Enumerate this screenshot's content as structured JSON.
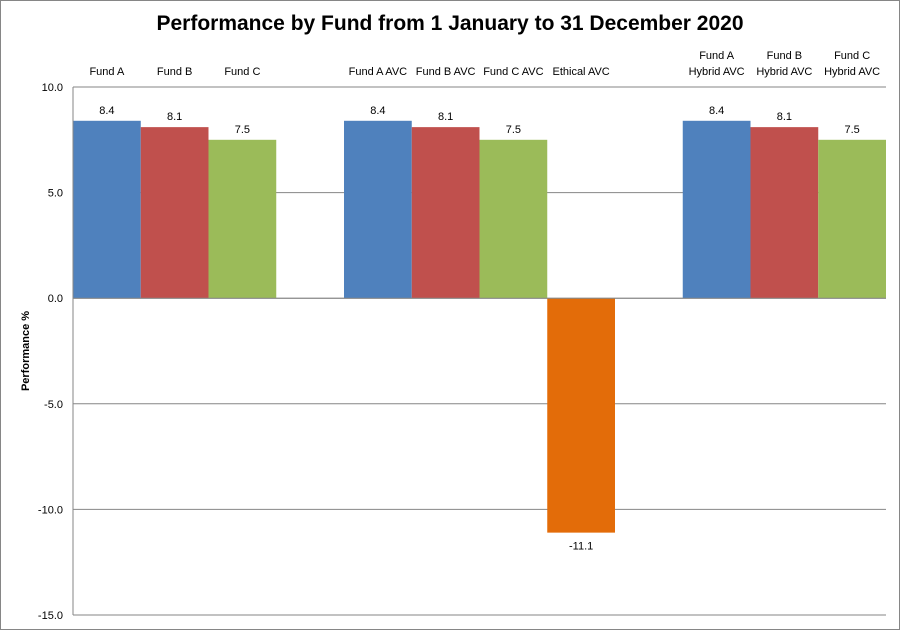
{
  "chart_data": {
    "type": "bar",
    "title": "Performance by Fund from 1 January to 31 December 2020",
    "xlabel": "",
    "ylabel": "Performance %",
    "ylim": [
      -15,
      10
    ],
    "yticks": [
      "10.0",
      "5.0",
      "0.0",
      "-5.0",
      "-10.0",
      "-15.0"
    ],
    "ytick_values": [
      10,
      5,
      0,
      -5,
      -10,
      -15
    ],
    "grid": true,
    "category_position": "top",
    "categories": [
      [
        "Fund A"
      ],
      [
        "Fund B"
      ],
      [
        "Fund C"
      ],
      [
        "Fund A AVC"
      ],
      [
        "Fund B AVC"
      ],
      [
        "Fund C AVC"
      ],
      [
        "Ethical AVC"
      ],
      [
        "Fund A",
        "Hybrid AVC"
      ],
      [
        "Fund B",
        "Hybrid AVC"
      ],
      [
        "Fund C",
        "Hybrid AVC"
      ]
    ],
    "groups": [
      [
        0,
        1,
        2
      ],
      [
        3,
        4,
        5,
        6
      ],
      [
        7,
        8,
        9
      ]
    ],
    "values": [
      8.4,
      8.1,
      7.5,
      8.4,
      8.1,
      7.5,
      -11.1,
      8.4,
      8.1,
      7.5
    ],
    "data_labels": [
      "8.4",
      "8.1",
      "7.5",
      "8.4",
      "8.1",
      "7.5",
      "-11.1",
      "8.4",
      "8.1",
      "7.5"
    ],
    "colors": [
      "#4F81BD",
      "#C0504D",
      "#9BBB59",
      "#4F81BD",
      "#C0504D",
      "#9BBB59",
      "#E36C09",
      "#4F81BD",
      "#C0504D",
      "#9BBB59"
    ]
  }
}
